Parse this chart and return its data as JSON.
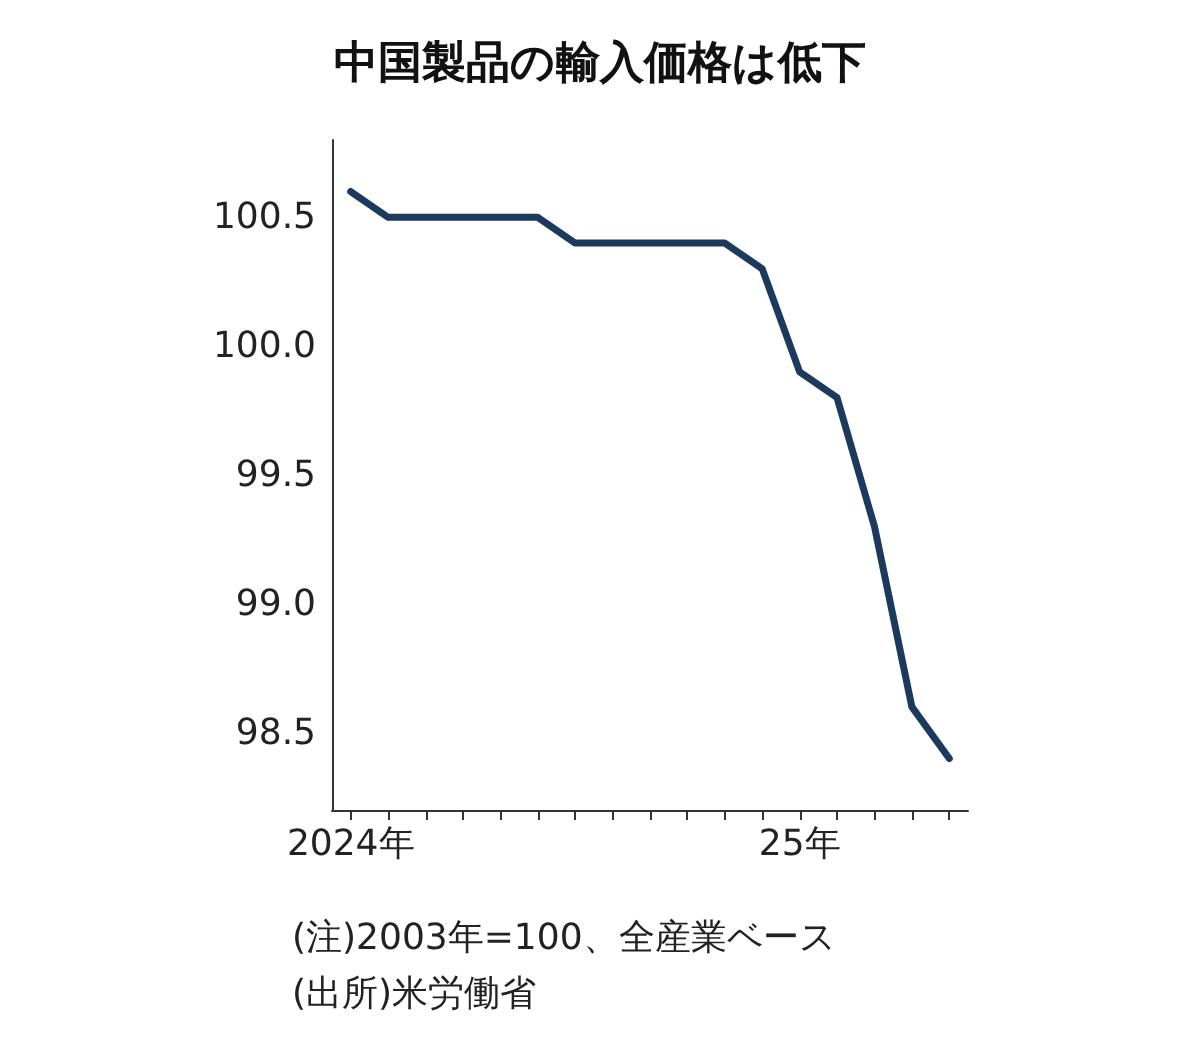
{
  "chart_data": {
    "type": "line",
    "title": "中国製品の輸入価格は低下",
    "categories": [
      "2024年",
      null,
      null,
      null,
      null,
      null,
      null,
      null,
      null,
      null,
      null,
      null,
      "25年",
      null,
      null,
      null,
      null
    ],
    "series": [
      {
        "color": "#1c3a5e",
        "values": [
          100.6,
          100.5,
          100.5,
          100.5,
          100.5,
          100.5,
          100.4,
          100.4,
          100.4,
          100.4,
          100.4,
          100.3,
          99.9,
          99.8,
          99.3,
          98.6,
          98.4
        ]
      }
    ],
    "ylim": [
      98.2,
      100.8
    ],
    "yticks": [
      98.5,
      {
        "value": 99,
        "label": "99.0"
      },
      99.5,
      {
        "value": 100,
        "label": "100.0"
      },
      100.5
    ],
    "annotations": [
      "(注)2003年=100、全産業ベース",
      "(出所)米労働省"
    ],
    "grid": false,
    "marker": "none",
    "line_style": "solid"
  }
}
